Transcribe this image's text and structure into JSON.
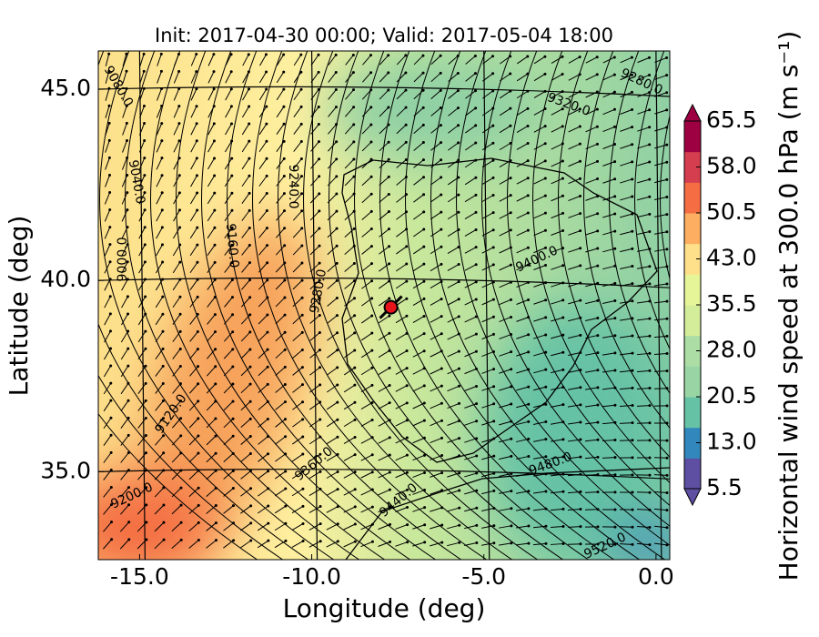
{
  "chart_data": {
    "type": "map",
    "title": "Init: 2017-04-30 00:00; Valid: 2017-05-04 18:00",
    "xlabel": "Longitude (deg)",
    "ylabel": "Latitude (deg)",
    "xlim": [
      -16.2,
      0.4
    ],
    "ylim": [
      32.7,
      46.0
    ],
    "xticks": [
      {
        "value": -15,
        "label": "-15.0"
      },
      {
        "value": -10,
        "label": "-10.0"
      },
      {
        "value": -5,
        "label": "-5.0"
      },
      {
        "value": 0,
        "label": "0.0"
      }
    ],
    "yticks": [
      {
        "value": 35,
        "label": "35.0"
      },
      {
        "value": 40,
        "label": "40.0"
      },
      {
        "value": 45,
        "label": "45.0"
      }
    ],
    "grid": true,
    "marker": {
      "lon": -7.7,
      "lat": 39.3,
      "color": "#e8141c"
    },
    "contour_labels": [
      "9080.0",
      "9040.0",
      "9000.0",
      "9240.0",
      "9160.0",
      "9280.0",
      "9120.0",
      "9200.0",
      "9360.0",
      "9440.0",
      "9400.0",
      "9320.0",
      "9280.0",
      "9480.0",
      "9520.0"
    ],
    "colorbar": {
      "label": "Horizontal wind speed at 300.0 hPa (m s⁻¹)",
      "clim": [
        5.5,
        65.5
      ],
      "ticks": [
        {
          "value": 5.5,
          "label": "5.5"
        },
        {
          "value": 13,
          "label": "13.0"
        },
        {
          "value": 20.5,
          "label": "20.5"
        },
        {
          "value": 28,
          "label": "28.0"
        },
        {
          "value": 35.5,
          "label": "35.5"
        },
        {
          "value": 43,
          "label": "43.0"
        },
        {
          "value": 50.5,
          "label": "50.5"
        },
        {
          "value": 58,
          "label": "58.0"
        },
        {
          "value": 65.5,
          "label": "65.5"
        }
      ],
      "colors": [
        "#5e4fa2",
        "#3288bd",
        "#66c2a5",
        "#99d5a4",
        "#abdda4",
        "#d4ed9b",
        "#e6f598",
        "#fee08b",
        "#fdae61",
        "#f46d43",
        "#d53e4f",
        "#9e0142"
      ]
    }
  }
}
